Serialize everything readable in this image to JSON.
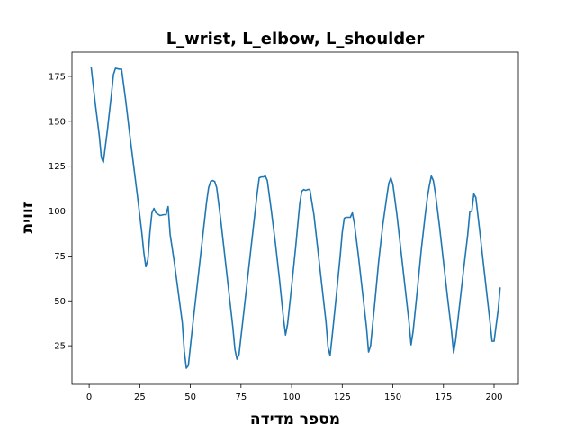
{
  "chart_data": {
    "type": "line",
    "title": "L_wrist, L_elbow, L_shoulder",
    "xlabel": "מספר מדידה",
    "ylabel": "זווית",
    "xlim": [
      -8.5,
      212
    ],
    "ylim": [
      3.5,
      188.5
    ],
    "xticks": [
      0,
      25,
      50,
      75,
      100,
      125,
      150,
      175,
      200
    ],
    "yticks": [
      25,
      50,
      75,
      100,
      125,
      150,
      175
    ],
    "grid": false,
    "series": [
      {
        "color": "#1f77b4",
        "points": [
          [
            1,
            180
          ],
          [
            3,
            160
          ],
          [
            5,
            142
          ],
          [
            6,
            130
          ],
          [
            7,
            127
          ],
          [
            9,
            145
          ],
          [
            11,
            165
          ],
          [
            12,
            176
          ],
          [
            13,
            179.5
          ],
          [
            15,
            179
          ],
          [
            16,
            179
          ],
          [
            18,
            162
          ],
          [
            20,
            143
          ],
          [
            22,
            125
          ],
          [
            24,
            107
          ],
          [
            26,
            88
          ],
          [
            27,
            77
          ],
          [
            28,
            69
          ],
          [
            29,
            73
          ],
          [
            30,
            88
          ],
          [
            31,
            99
          ],
          [
            32,
            101.5
          ],
          [
            33,
            99
          ],
          [
            35,
            97.5
          ],
          [
            37,
            98
          ],
          [
            38,
            98
          ],
          [
            39,
            102.5
          ],
          [
            40,
            87
          ],
          [
            42,
            72
          ],
          [
            44,
            55
          ],
          [
            46,
            38
          ],
          [
            47,
            22
          ],
          [
            48,
            12.5
          ],
          [
            49,
            14
          ],
          [
            51,
            35
          ],
          [
            53,
            55
          ],
          [
            55,
            75
          ],
          [
            57,
            95
          ],
          [
            58,
            105
          ],
          [
            59,
            113
          ],
          [
            60,
            116.5
          ],
          [
            61,
            117
          ],
          [
            62,
            116.5
          ],
          [
            63,
            113
          ],
          [
            65,
            95
          ],
          [
            67,
            75
          ],
          [
            69,
            55
          ],
          [
            71,
            35
          ],
          [
            72,
            23
          ],
          [
            73,
            17.5
          ],
          [
            74,
            20
          ],
          [
            76,
            40
          ],
          [
            78,
            60
          ],
          [
            80,
            80
          ],
          [
            82,
            100
          ],
          [
            83,
            110
          ],
          [
            84,
            118.5
          ],
          [
            85,
            119
          ],
          [
            86,
            119
          ],
          [
            87,
            119.5
          ],
          [
            88,
            117
          ],
          [
            90,
            100
          ],
          [
            92,
            82
          ],
          [
            94,
            62
          ],
          [
            96,
            40
          ],
          [
            97,
            31
          ],
          [
            98,
            37
          ],
          [
            100,
            58
          ],
          [
            102,
            80
          ],
          [
            103,
            92
          ],
          [
            104,
            104
          ],
          [
            105,
            111
          ],
          [
            106,
            112
          ],
          [
            107,
            111.5
          ],
          [
            108,
            112
          ],
          [
            109,
            112
          ],
          [
            111,
            98
          ],
          [
            113,
            78
          ],
          [
            115,
            58
          ],
          [
            117,
            38
          ],
          [
            118,
            24
          ],
          [
            119,
            19.5
          ],
          [
            120,
            30
          ],
          [
            122,
            52
          ],
          [
            124,
            75
          ],
          [
            125,
            88
          ],
          [
            126,
            96
          ],
          [
            127,
            96.5
          ],
          [
            129,
            96.5
          ],
          [
            130,
            99
          ],
          [
            131,
            93
          ],
          [
            133,
            75
          ],
          [
            135,
            55
          ],
          [
            137,
            35
          ],
          [
            138,
            21.5
          ],
          [
            139,
            25
          ],
          [
            141,
            48
          ],
          [
            143,
            72
          ],
          [
            145,
            92
          ],
          [
            147,
            108
          ],
          [
            148,
            115.5
          ],
          [
            149,
            118.5
          ],
          [
            150,
            115
          ],
          [
            152,
            98
          ],
          [
            154,
            78
          ],
          [
            156,
            58
          ],
          [
            158,
            38
          ],
          [
            159,
            25.5
          ],
          [
            160,
            33
          ],
          [
            162,
            55
          ],
          [
            164,
            78
          ],
          [
            166,
            98
          ],
          [
            167,
            107
          ],
          [
            168,
            114
          ],
          [
            169,
            119.5
          ],
          [
            170,
            117
          ],
          [
            171,
            110
          ],
          [
            173,
            92
          ],
          [
            175,
            72
          ],
          [
            177,
            52
          ],
          [
            179,
            33
          ],
          [
            180,
            21
          ],
          [
            181,
            28
          ],
          [
            183,
            48
          ],
          [
            185,
            68
          ],
          [
            187,
            87
          ],
          [
            188,
            99.5
          ],
          [
            189,
            100
          ],
          [
            190,
            109.5
          ],
          [
            191,
            107.5
          ],
          [
            193,
            88
          ],
          [
            195,
            68
          ],
          [
            197,
            48
          ],
          [
            198,
            38
          ],
          [
            199,
            27.5
          ],
          [
            200,
            27.5
          ],
          [
            202,
            45
          ],
          [
            203,
            57.5
          ]
        ]
      }
    ]
  }
}
